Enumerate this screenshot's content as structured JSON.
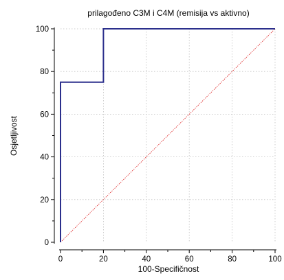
{
  "chart_data": {
    "type": "line",
    "title": "prilagođeno C3M i C4M (remisija vs aktivno)",
    "xlabel": "100-Specifičnost",
    "ylabel": "Osjetljivost",
    "xlim": [
      0,
      100
    ],
    "ylim": [
      0,
      100
    ],
    "xticks": [
      0,
      20,
      40,
      60,
      80,
      100
    ],
    "yticks": [
      0,
      20,
      40,
      60,
      80,
      100
    ],
    "x_tick_labels": [
      "0",
      "20",
      "40",
      "60",
      "80",
      "100"
    ],
    "y_tick_labels": [
      "0",
      "20",
      "40",
      "60",
      "80",
      "100"
    ],
    "grid": true,
    "series": [
      {
        "style": "step",
        "color": "#2b2f8c",
        "points": [
          [
            0,
            0
          ],
          [
            0,
            75
          ],
          [
            20,
            75
          ],
          [
            20,
            100
          ],
          [
            100,
            100
          ]
        ]
      },
      {
        "style": "diagonal-reference",
        "color": "#e03030",
        "points": [
          [
            0,
            0
          ],
          [
            100,
            100
          ]
        ]
      }
    ]
  }
}
